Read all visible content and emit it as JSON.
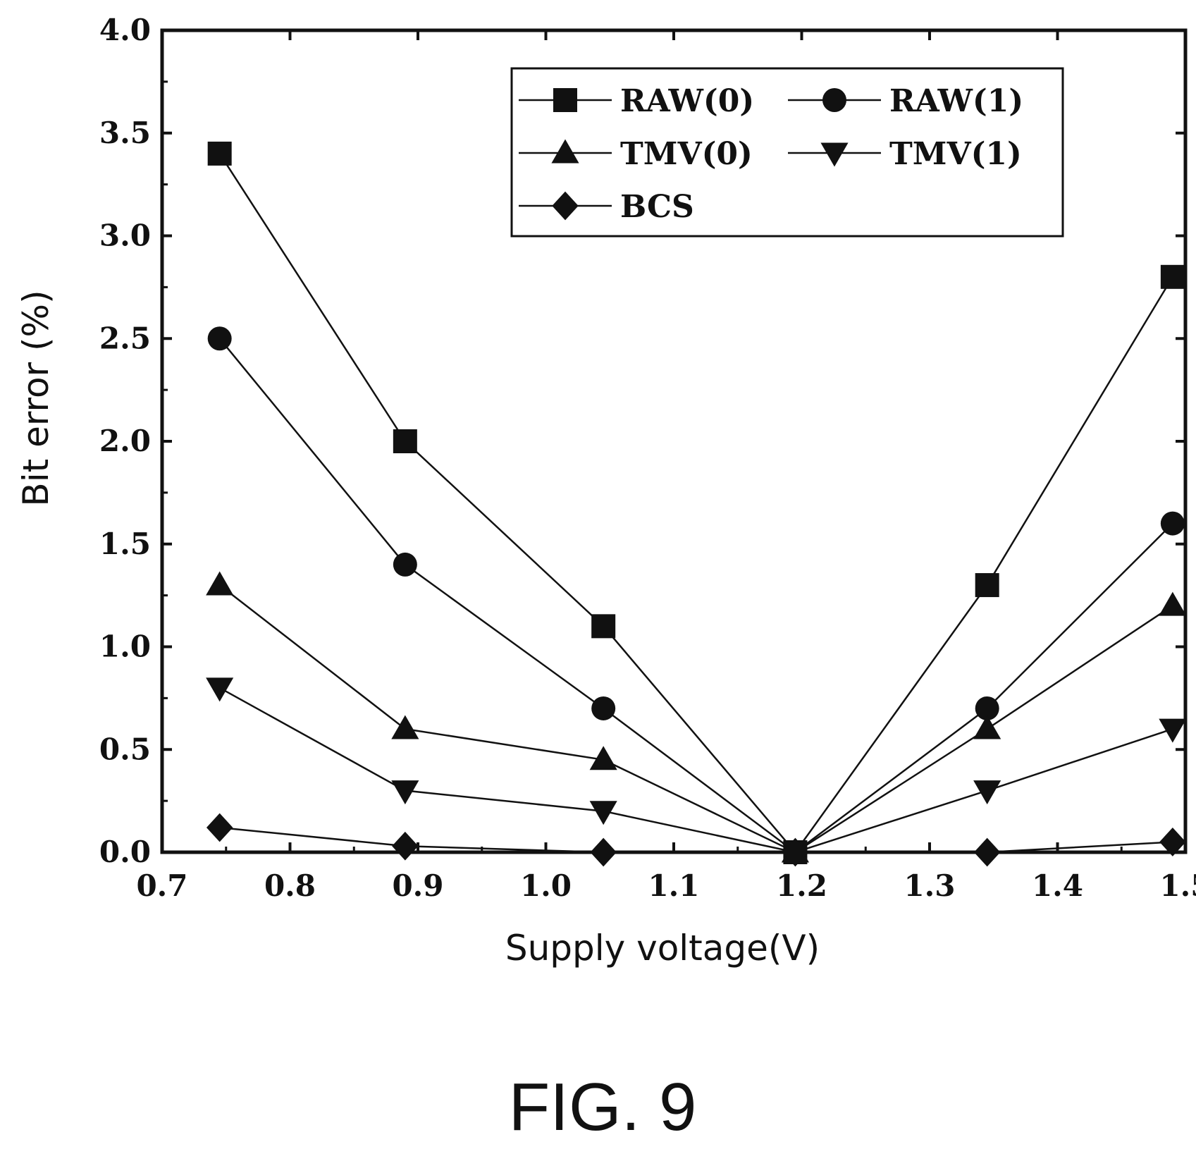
{
  "chart_data": {
    "type": "line",
    "xlabel": "Supply voltage(V)",
    "ylabel": "Bit error (%)",
    "xlim": [
      0.7,
      1.5
    ],
    "ylim": [
      0.0,
      4.0
    ],
    "x_ticks": [
      "0.7",
      "0.8",
      "0.9",
      "1.0",
      "1.1",
      "1.2",
      "1.3",
      "1.4",
      "1.5"
    ],
    "y_ticks": [
      "0.0",
      "0.5",
      "1.0",
      "1.5",
      "2.0",
      "2.5",
      "3.0",
      "3.5",
      "4.0"
    ],
    "x": [
      0.745,
      0.89,
      1.045,
      1.195,
      1.345,
      1.49
    ],
    "series": [
      {
        "name": "RAW(0)",
        "marker": "square",
        "values": [
          3.4,
          2.0,
          1.1,
          0.0,
          1.3,
          2.8
        ]
      },
      {
        "name": "RAW(1)",
        "marker": "circle",
        "values": [
          2.5,
          1.4,
          0.7,
          0.0,
          0.7,
          1.6
        ]
      },
      {
        "name": "TMV(0)",
        "marker": "triangle-up",
        "values": [
          1.3,
          0.6,
          0.45,
          0.0,
          0.6,
          1.2
        ]
      },
      {
        "name": "TMV(1)",
        "marker": "triangle-down",
        "values": [
          0.8,
          0.3,
          0.2,
          0.0,
          0.3,
          0.6
        ]
      },
      {
        "name": "BCS",
        "marker": "diamond",
        "values": [
          0.12,
          0.03,
          0.0,
          0.0,
          0.0,
          0.05
        ]
      }
    ],
    "grid": false,
    "legend_position": "top-right"
  },
  "caption": "FIG. 9"
}
